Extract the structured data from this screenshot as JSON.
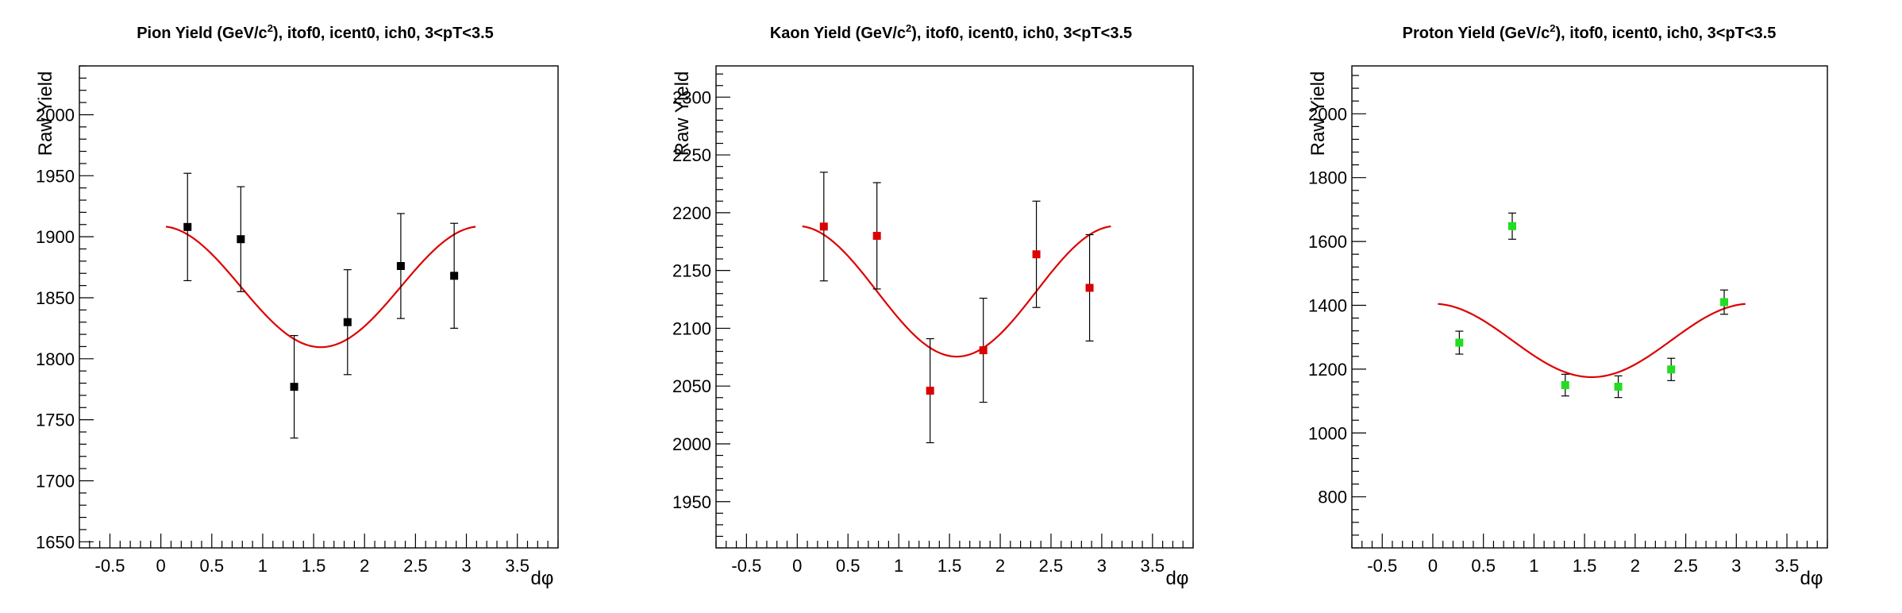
{
  "chart_data": [
    {
      "type": "scatter",
      "title_main": "Pion Yield (GeV/c",
      "title_sup": "2",
      "title_rest": "), itof0, icent0, ich0, 3<pT<3.5",
      "xlabel": "dφ",
      "ylabel": "Raw Yield",
      "xlim": [
        -0.8,
        3.9
      ],
      "ylim": [
        1645,
        2040
      ],
      "xticks": [
        -0.5,
        0,
        0.5,
        1,
        1.5,
        2,
        2.5,
        3,
        3.5
      ],
      "xtick_labels": [
        "-0.5",
        "0",
        "0.5",
        "1",
        "1.5",
        "2",
        "2.5",
        "3",
        "3.5"
      ],
      "yticks": [
        1650,
        1700,
        1750,
        1800,
        1850,
        1900,
        1950,
        2000
      ],
      "ytick_labels": [
        "1650",
        "1700",
        "1750",
        "1800",
        "1850",
        "1900",
        "1950",
        "2000"
      ],
      "marker_color": "#000000",
      "fit_color": "#dd0000",
      "x": [
        0.262,
        0.785,
        1.309,
        1.833,
        2.356,
        2.88
      ],
      "y": [
        1908,
        1898,
        1777,
        1830,
        1876,
        1868
      ],
      "yerr": [
        44,
        43,
        42,
        43,
        43,
        43
      ],
      "fit": {
        "mean": 1859,
        "amp": 49.5,
        "x_range": [
          0.05,
          3.09
        ]
      }
    },
    {
      "type": "scatter",
      "title_main": "Kaon Yield (GeV/c",
      "title_sup": "2",
      "title_rest": "), itof0, icent0, ich0, 3<pT<3.5",
      "xlabel": "dφ",
      "ylabel": "Raw Yield",
      "xlim": [
        -0.8,
        3.9
      ],
      "ylim": [
        1910,
        2327
      ],
      "xticks": [
        -0.5,
        0,
        0.5,
        1,
        1.5,
        2,
        2.5,
        3,
        3.5
      ],
      "xtick_labels": [
        "-0.5",
        "0",
        "0.5",
        "1",
        "1.5",
        "2",
        "2.5",
        "3",
        "3.5"
      ],
      "yticks": [
        1950,
        2000,
        2050,
        2100,
        2150,
        2200,
        2250,
        2300
      ],
      "ytick_labels": [
        "1950",
        "2000",
        "2050",
        "2100",
        "2150",
        "2200",
        "2250",
        "2300"
      ],
      "marker_color": "#dd0000",
      "fit_color": "#dd0000",
      "x": [
        0.262,
        0.785,
        1.309,
        1.833,
        2.356,
        2.88
      ],
      "y": [
        2188,
        2180,
        2046,
        2081,
        2164,
        2135
      ],
      "yerr": [
        47,
        46,
        45,
        45,
        46,
        46
      ],
      "fit": {
        "mean": 2132,
        "amp": 56.5,
        "x_range": [
          0.05,
          3.09
        ]
      }
    },
    {
      "type": "scatter",
      "title_main": "Proton Yield (GeV/c",
      "title_sup": "2",
      "title_rest": "), itof0, icent0, ich0, 3<pT<3.5",
      "xlabel": "dφ",
      "ylabel": "Raw Yield",
      "xlim": [
        -0.8,
        3.9
      ],
      "ylim": [
        640,
        2150
      ],
      "xticks": [
        -0.5,
        0,
        0.5,
        1,
        1.5,
        2,
        2.5,
        3,
        3.5
      ],
      "xtick_labels": [
        "-0.5",
        "0",
        "0.5",
        "1",
        "1.5",
        "2",
        "2.5",
        "3",
        "3.5"
      ],
      "yticks": [
        800,
        1000,
        1200,
        1400,
        1600,
        1800,
        2000
      ],
      "ytick_labels": [
        "800",
        "1000",
        "1200",
        "1400",
        "1600",
        "1800",
        "2000"
      ],
      "marker_color": "#22dd22",
      "fit_color": "#dd0000",
      "x": [
        0.262,
        0.785,
        1.309,
        1.833,
        2.356,
        2.88
      ],
      "y": [
        1283,
        1648,
        1150,
        1145,
        1199,
        1410
      ],
      "yerr": [
        36,
        41,
        34,
        34,
        35,
        38
      ],
      "fit": {
        "mean": 1290,
        "amp": 115,
        "x_range": [
          0.05,
          3.09
        ]
      }
    }
  ]
}
